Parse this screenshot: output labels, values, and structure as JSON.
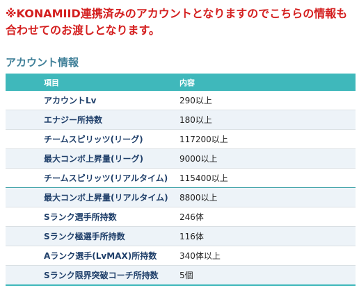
{
  "notice": {
    "line1": "※KONAMIID連携済みのアカウントとなりますのでこちらの情報も",
    "line2": "合わせてのお渡しとなります。"
  },
  "section": {
    "title": "アカウント情報"
  },
  "table": {
    "headers": {
      "item": "項目",
      "value": "内容"
    },
    "rows": [
      {
        "item": "アカウントLv",
        "value": "290以上"
      },
      {
        "item": "エナジー所持数",
        "value": "180以上"
      },
      {
        "item": "チームスピリッツ(リーグ)",
        "value": "117200以上"
      },
      {
        "item": "最大コンボ上昇量(リーグ)",
        "value": "9000以上"
      },
      {
        "item": "チームスピリッツ(リアルタイム)",
        "value": "115400以上"
      },
      {
        "item": "最大コンボ上昇量(リアルタイム)",
        "value": "8800以上"
      },
      {
        "item": "Sランク選手所持数",
        "value": "246体"
      },
      {
        "item": "Sランク極選手所持数",
        "value": "116体"
      },
      {
        "item": "Aランク選手(LvMAX)所持数",
        "value": "340体以上"
      },
      {
        "item": "Sランク限界突破コーチ所持数",
        "value": "5個"
      }
    ]
  }
}
